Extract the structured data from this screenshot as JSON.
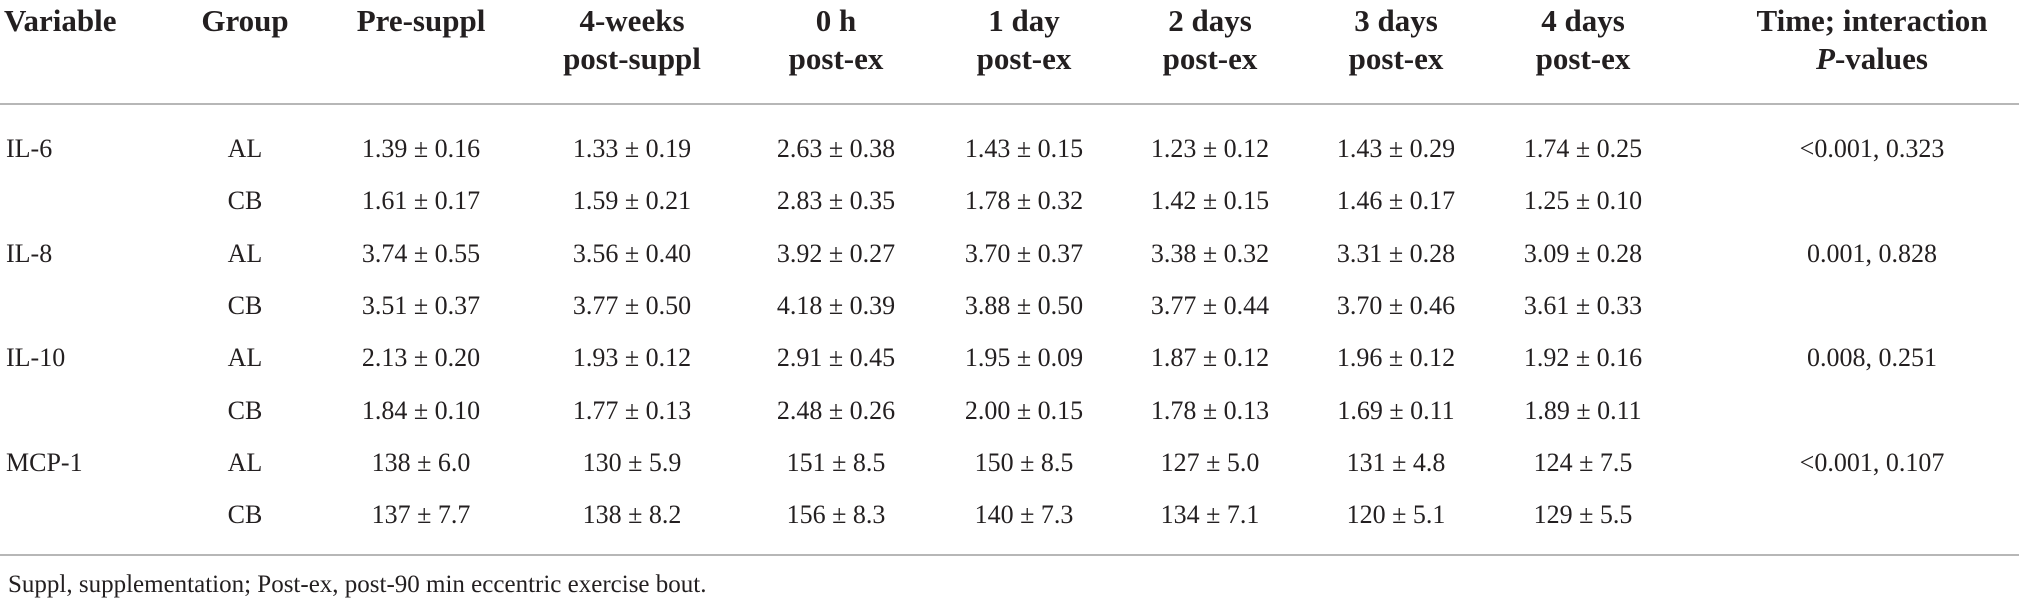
{
  "table": {
    "headers": [
      {
        "l1": "Variable",
        "l2": ""
      },
      {
        "l1": "Group",
        "l2": ""
      },
      {
        "l1": "Pre-suppl",
        "l2": ""
      },
      {
        "l1": "4-weeks",
        "l2": "post-suppl"
      },
      {
        "l1": "0 h",
        "l2": "post-ex"
      },
      {
        "l1": "1 day",
        "l2": "post-ex"
      },
      {
        "l1": "2 days",
        "l2": "post-ex"
      },
      {
        "l1": "3 days",
        "l2": "post-ex"
      },
      {
        "l1": "4 days",
        "l2": "post-ex"
      },
      {
        "l1": "Time; interaction",
        "l2_italic": "P",
        "l2": "-values"
      }
    ],
    "rows": [
      {
        "variable": "IL-6",
        "group": "AL",
        "values": [
          "1.39 ± 0.16",
          "1.33 ± 0.19",
          "2.63 ± 0.38",
          "1.43 ± 0.15",
          "1.23 ± 0.12",
          "1.43 ± 0.29",
          "1.74 ± 0.25"
        ],
        "p": "<0.001, 0.323"
      },
      {
        "variable": "",
        "group": "CB",
        "values": [
          "1.61 ± 0.17",
          "1.59 ± 0.21",
          "2.83 ± 0.35",
          "1.78 ± 0.32",
          "1.42 ± 0.15",
          "1.46 ± 0.17",
          "1.25 ± 0.10"
        ],
        "p": ""
      },
      {
        "variable": "IL-8",
        "group": "AL",
        "values": [
          "3.74 ± 0.55",
          "3.56 ± 0.40",
          "3.92 ± 0.27",
          "3.70 ± 0.37",
          "3.38 ± 0.32",
          "3.31 ± 0.28",
          "3.09 ± 0.28"
        ],
        "p": "0.001, 0.828"
      },
      {
        "variable": "",
        "group": "CB",
        "values": [
          "3.51 ± 0.37",
          "3.77 ± 0.50",
          "4.18 ± 0.39",
          "3.88 ± 0.50",
          "3.77 ± 0.44",
          "3.70 ± 0.46",
          "3.61 ± 0.33"
        ],
        "p": ""
      },
      {
        "variable": "IL-10",
        "group": "AL",
        "values": [
          "2.13 ± 0.20",
          "1.93 ± 0.12",
          "2.91 ± 0.45",
          "1.95 ± 0.09",
          "1.87 ± 0.12",
          "1.96 ± 0.12",
          "1.92 ± 0.16"
        ],
        "p": "0.008, 0.251"
      },
      {
        "variable": "",
        "group": "CB",
        "values": [
          "1.84 ± 0.10",
          "1.77 ± 0.13",
          "2.48 ± 0.26",
          "2.00 ± 0.15",
          "1.78 ± 0.13",
          "1.69 ± 0.11",
          "1.89 ± 0.11"
        ],
        "p": ""
      },
      {
        "variable": "MCP-1",
        "group": "AL",
        "values": [
          "138 ± 6.0",
          "130 ± 5.9",
          "151 ± 8.5",
          "150 ± 8.5",
          "127 ± 5.0",
          "131 ± 4.8",
          "124 ± 7.5"
        ],
        "p": "<0.001, 0.107"
      },
      {
        "variable": "",
        "group": "CB",
        "values": [
          "137 ± 7.7",
          "138 ± 8.2",
          "156 ± 8.3",
          "140 ± 7.3",
          "134 ± 7.1",
          "120 ± 5.1",
          "129 ± 5.5"
        ],
        "p": ""
      }
    ]
  },
  "footnote": "Suppl, supplementation; Post-ex, post-90 min eccentric exercise bout."
}
